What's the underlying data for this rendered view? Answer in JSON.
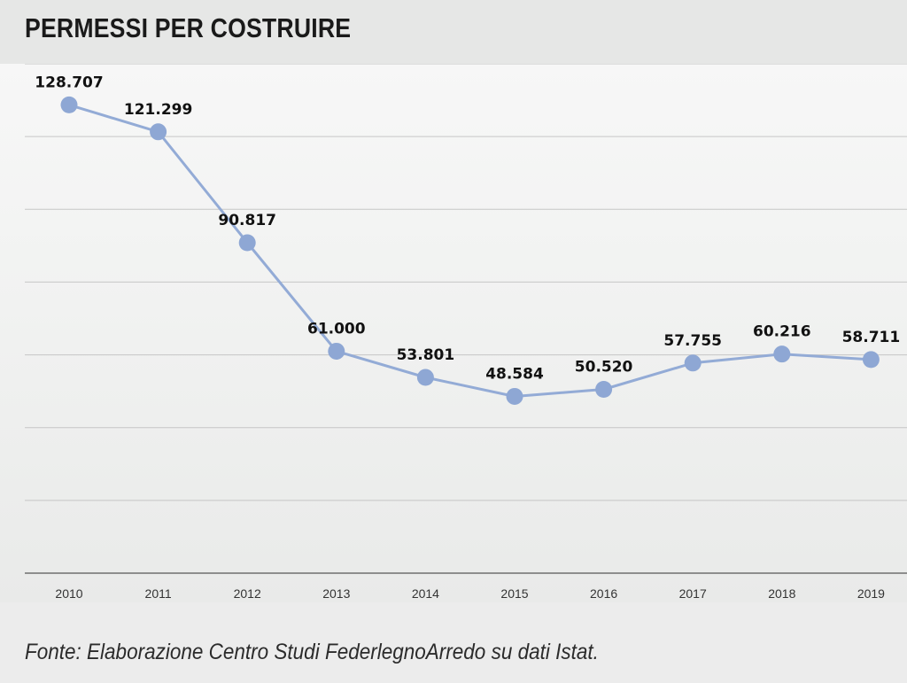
{
  "title": "PERMESSI PER COSTRUIRE",
  "source": "Fonte: Elaborazione Centro Studi FederlegnoArredo su dati Istat.",
  "colors": {
    "line": "#93abd6",
    "marker": "#8ea7d4",
    "grid": "#c6c6c6",
    "axis": "#6f6f6f"
  },
  "chart_data": {
    "type": "line",
    "title": "PERMESSI PER COSTRUIRE",
    "categories": [
      "2010",
      "2011",
      "2012",
      "2013",
      "2014",
      "2015",
      "2016",
      "2017",
      "2018",
      "2019"
    ],
    "values": [
      128707,
      121299,
      90817,
      61000,
      53801,
      48584,
      50520,
      57755,
      60216,
      58711
    ],
    "data_labels": [
      "128.707",
      "121.299",
      "90.817",
      "61.000",
      "53.801",
      "48.584",
      "50.520",
      "57.755",
      "60.216",
      "58.711"
    ],
    "xlabel": "",
    "ylabel": "",
    "ylim": [
      0,
      140000
    ],
    "y_gridline_step": 20000,
    "y_tick_labels_shown": false,
    "grid": true,
    "legend": "none"
  }
}
